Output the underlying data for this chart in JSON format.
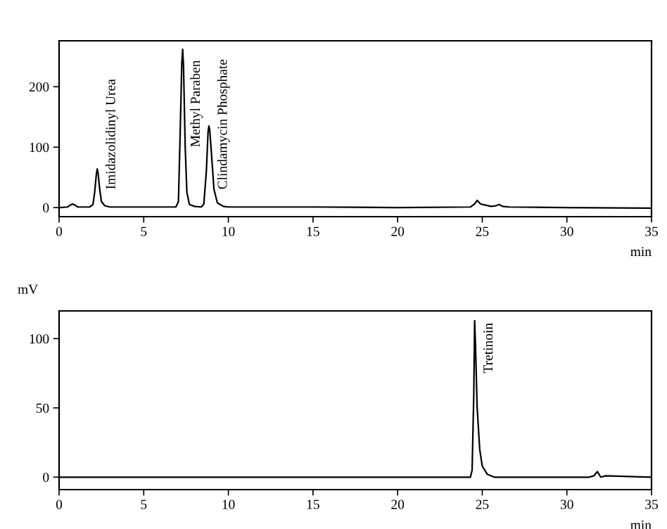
{
  "chart_data": [
    {
      "type": "line",
      "xlabel": "min",
      "xlim": [
        0,
        35
      ],
      "ylim": [
        -15,
        276
      ],
      "xticks": [
        0,
        5,
        10,
        15,
        20,
        25,
        30,
        35
      ],
      "yticks": [
        0,
        100,
        200
      ],
      "grid": false,
      "legend": false,
      "series": [
        {
          "color": "#000000",
          "x": [
            0,
            0.5,
            0.65,
            0.8,
            0.95,
            1.1,
            1.8,
            2.0,
            2.1,
            2.2,
            2.25,
            2.3,
            2.4,
            2.5,
            2.7,
            3.0,
            6.9,
            7.05,
            7.15,
            7.25,
            7.3,
            7.35,
            7.45,
            7.55,
            7.7,
            8.0,
            8.4,
            8.55,
            8.7,
            8.8,
            8.85,
            8.9,
            9.0,
            9.15,
            9.35,
            9.7,
            10,
            15,
            20,
            24.3,
            24.55,
            24.7,
            24.9,
            25.2,
            25.5,
            25.8,
            26.0,
            26.2,
            26.6,
            30,
            35
          ],
          "values": [
            0,
            1,
            4,
            6,
            4,
            1,
            1,
            5,
            25,
            55,
            64,
            58,
            30,
            10,
            3,
            1,
            1,
            10,
            120,
            240,
            262,
            235,
            100,
            25,
            5,
            2,
            1,
            6,
            60,
            125,
            135,
            128,
            90,
            30,
            8,
            2,
            1,
            1,
            0,
            1,
            6,
            12,
            6,
            4,
            2,
            3,
            5,
            2,
            1,
            0,
            -1
          ]
        }
      ],
      "annotations": [
        {
          "text": "Imidazolidinyl Urea",
          "x": 2.4,
          "y": 30
        },
        {
          "text": "Methyl Paraben",
          "x": 7.4,
          "y": 100
        },
        {
          "text": "Clindamycin Phosphate",
          "x": 9.0,
          "y": 30
        }
      ]
    },
    {
      "type": "line",
      "xlabel": "min",
      "ylabel": "mV",
      "xlim": [
        0,
        35
      ],
      "ylim": [
        -9,
        120
      ],
      "xticks": [
        0,
        5,
        10,
        15,
        20,
        25,
        30,
        35
      ],
      "yticks": [
        0,
        50,
        100
      ],
      "grid": false,
      "legend": false,
      "series": [
        {
          "color": "#000000",
          "x": [
            0,
            5,
            10,
            15,
            20,
            24.3,
            24.4,
            24.5,
            24.55,
            24.6,
            24.7,
            24.85,
            25.0,
            25.3,
            25.7,
            31.3,
            31.6,
            31.8,
            32.0,
            32.3,
            35
          ],
          "values": [
            0,
            0,
            0,
            0,
            0,
            0,
            5,
            60,
            113,
            95,
            50,
            20,
            8,
            2,
            0,
            0,
            1,
            4,
            0,
            1,
            0
          ]
        }
      ],
      "annotations": [
        {
          "text": "Tretinoin",
          "x": 24.7,
          "y": 75
        }
      ]
    }
  ]
}
